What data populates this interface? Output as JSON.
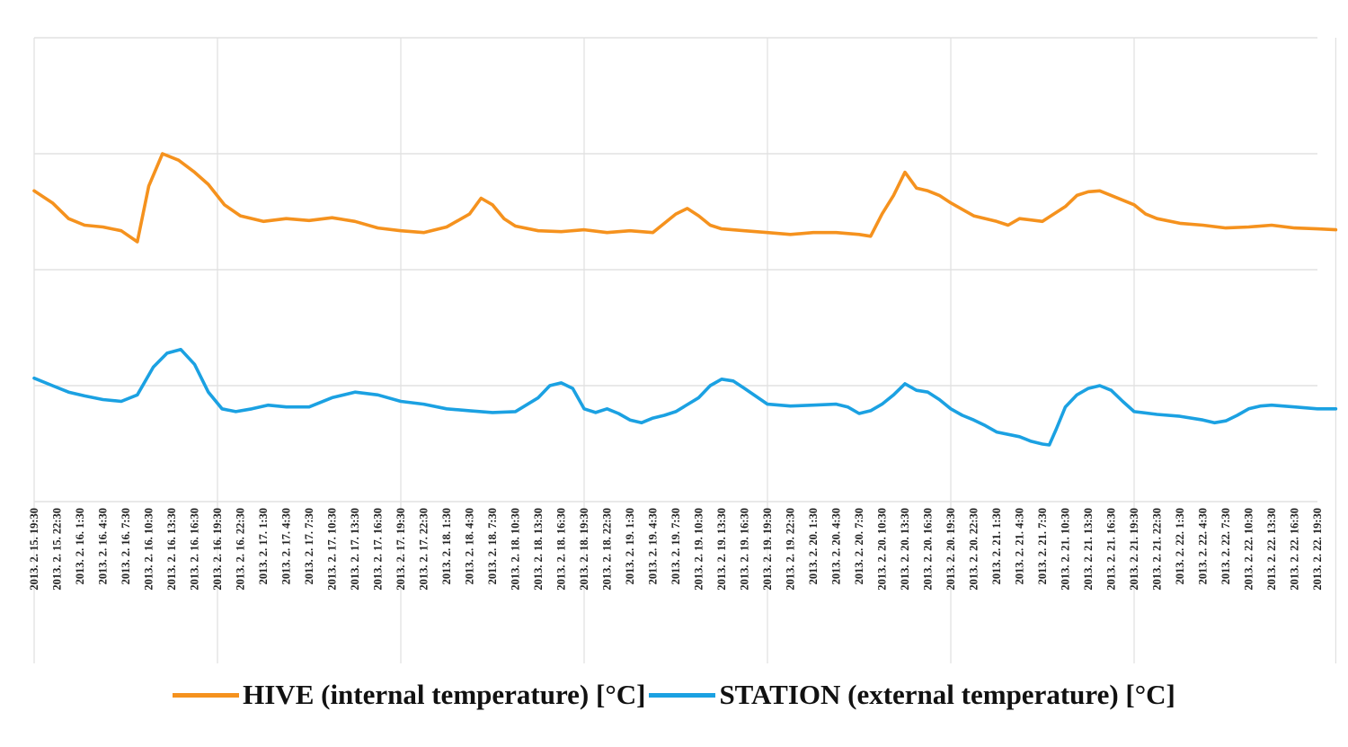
{
  "chart_data": {
    "type": "line",
    "title": "",
    "xlabel": "",
    "ylabel": "",
    "grid": true,
    "legend_position": "bottom",
    "y_tick_labels_shown": false,
    "categories": [
      "2013. 2. 15. 19:30",
      "2013. 2. 15. 22:30",
      "2013. 2. 16. 1:30",
      "2013. 2. 16. 4:30",
      "2013. 2. 16. 7:30",
      "2013. 2. 16. 10:30",
      "2013. 2. 16. 13:30",
      "2013. 2. 16. 16:30",
      "2013. 2. 16. 19:30",
      "2013. 2. 16. 22:30",
      "2013. 2. 17. 1:30",
      "2013. 2. 17. 4:30",
      "2013. 2. 17. 7:30",
      "2013. 2. 17. 10:30",
      "2013. 2. 17. 13:30",
      "2013. 2. 17. 16:30",
      "2013. 2. 17. 19:30",
      "2013. 2. 17. 22:30",
      "2013. 2. 18. 1:30",
      "2013. 2. 18. 4:30",
      "2013. 2. 18. 7:30",
      "2013. 2. 18. 10:30",
      "2013. 2. 18. 13:30",
      "2013. 2. 18. 16:30",
      "2013. 2. 18. 19:30",
      "2013. 2. 18. 22:30",
      "2013. 2. 19. 1:30",
      "2013. 2. 19. 4:30",
      "2013. 2. 19. 7:30",
      "2013. 2. 19. 10:30",
      "2013. 2. 19. 13:30",
      "2013. 2. 19. 16:30",
      "2013. 2. 19. 19:30",
      "2013. 2. 19. 22:30",
      "2013. 2. 20. 1:30",
      "2013. 2. 20. 4:30",
      "2013. 2. 20. 7:30",
      "2013. 2. 20. 10:30",
      "2013. 2. 20. 13:30",
      "2013. 2. 20. 16:30",
      "2013. 2. 20. 19:30",
      "2013. 2. 20. 22:30",
      "2013. 2. 21. 1:30",
      "2013. 2. 21. 4:30",
      "2013. 2. 21. 7:30",
      "2013. 2. 21. 10:30",
      "2013. 2. 21. 13:30",
      "2013. 2. 21. 16:30",
      "2013. 2. 21. 19:30",
      "2013. 2. 21. 22:30",
      "2013. 2. 22. 1:30",
      "2013. 2. 22. 4:30",
      "2013. 2. 22. 7:30",
      "2013. 2. 22. 10:30",
      "2013. 2. 22. 13:30",
      "2013. 2. 22. 16:30",
      "2013. 2. 22. 19:30"
    ],
    "y_range": [
      0,
      5
    ],
    "series": [
      {
        "name": "HIVE (internal temperature) [°C]",
        "color": "#F5921E",
        "values": [
          [
            0.0,
            3.35
          ],
          [
            0.8,
            3.22
          ],
          [
            1.5,
            3.05
          ],
          [
            2.2,
            2.98
          ],
          [
            3.0,
            2.96
          ],
          [
            3.8,
            2.92
          ],
          [
            4.5,
            2.8
          ],
          [
            5.0,
            3.4
          ],
          [
            5.6,
            3.75
          ],
          [
            6.3,
            3.68
          ],
          [
            7.0,
            3.55
          ],
          [
            7.6,
            3.42
          ],
          [
            8.3,
            3.2
          ],
          [
            9.0,
            3.08
          ],
          [
            10.0,
            3.02
          ],
          [
            11.0,
            3.05
          ],
          [
            12.0,
            3.03
          ],
          [
            13.0,
            3.06
          ],
          [
            14.0,
            3.02
          ],
          [
            15.0,
            2.95
          ],
          [
            16.0,
            2.92
          ],
          [
            17.0,
            2.9
          ],
          [
            18.0,
            2.96
          ],
          [
            19.0,
            3.1
          ],
          [
            19.5,
            3.27
          ],
          [
            20.0,
            3.2
          ],
          [
            20.5,
            3.05
          ],
          [
            21.0,
            2.97
          ],
          [
            22.0,
            2.92
          ],
          [
            23.0,
            2.91
          ],
          [
            24.0,
            2.93
          ],
          [
            25.0,
            2.9
          ],
          [
            26.0,
            2.92
          ],
          [
            27.0,
            2.9
          ],
          [
            28.0,
            3.1
          ],
          [
            28.5,
            3.16
          ],
          [
            29.0,
            3.08
          ],
          [
            29.5,
            2.98
          ],
          [
            30.0,
            2.94
          ],
          [
            31.0,
            2.92
          ],
          [
            32.0,
            2.9
          ],
          [
            33.0,
            2.88
          ],
          [
            34.0,
            2.9
          ],
          [
            35.0,
            2.9
          ],
          [
            36.0,
            2.88
          ],
          [
            36.5,
            2.86
          ],
          [
            37.0,
            3.1
          ],
          [
            37.5,
            3.3
          ],
          [
            38.0,
            3.55
          ],
          [
            38.5,
            3.38
          ],
          [
            39.0,
            3.35
          ],
          [
            39.5,
            3.3
          ],
          [
            40.0,
            3.22
          ],
          [
            40.5,
            3.15
          ],
          [
            41.0,
            3.08
          ],
          [
            42.0,
            3.02
          ],
          [
            42.5,
            2.98
          ],
          [
            43.0,
            3.05
          ],
          [
            44.0,
            3.02
          ],
          [
            45.0,
            3.18
          ],
          [
            45.5,
            3.3
          ],
          [
            46.0,
            3.34
          ],
          [
            46.5,
            3.35
          ],
          [
            47.0,
            3.3
          ],
          [
            48.0,
            3.2
          ],
          [
            48.5,
            3.1
          ],
          [
            49.0,
            3.05
          ],
          [
            50.0,
            3.0
          ],
          [
            51.0,
            2.98
          ],
          [
            52.0,
            2.95
          ],
          [
            53.0,
            2.96
          ],
          [
            54.0,
            2.98
          ],
          [
            55.0,
            2.95
          ],
          [
            56.0,
            2.94
          ],
          [
            56.8,
            2.93
          ]
        ]
      },
      {
        "name": "STATION (external temperature) [°C]",
        "color": "#1BA1E2",
        "values": [
          [
            0.0,
            1.33
          ],
          [
            0.8,
            1.25
          ],
          [
            1.5,
            1.18
          ],
          [
            2.2,
            1.14
          ],
          [
            3.0,
            1.1
          ],
          [
            3.8,
            1.08
          ],
          [
            4.5,
            1.15
          ],
          [
            5.2,
            1.45
          ],
          [
            5.8,
            1.6
          ],
          [
            6.4,
            1.64
          ],
          [
            7.0,
            1.48
          ],
          [
            7.6,
            1.18
          ],
          [
            8.2,
            1.0
          ],
          [
            8.8,
            0.97
          ],
          [
            9.5,
            1.0
          ],
          [
            10.2,
            1.04
          ],
          [
            11.0,
            1.02
          ],
          [
            12.0,
            1.02
          ],
          [
            13.0,
            1.12
          ],
          [
            14.0,
            1.18
          ],
          [
            15.0,
            1.15
          ],
          [
            16.0,
            1.08
          ],
          [
            17.0,
            1.05
          ],
          [
            18.0,
            1.0
          ],
          [
            19.0,
            0.98
          ],
          [
            20.0,
            0.96
          ],
          [
            21.0,
            0.97
          ],
          [
            22.0,
            1.12
          ],
          [
            22.5,
            1.25
          ],
          [
            23.0,
            1.28
          ],
          [
            23.5,
            1.22
          ],
          [
            24.0,
            1.0
          ],
          [
            24.5,
            0.96
          ],
          [
            25.0,
            1.0
          ],
          [
            25.5,
            0.95
          ],
          [
            26.0,
            0.88
          ],
          [
            26.5,
            0.85
          ],
          [
            27.0,
            0.9
          ],
          [
            27.5,
            0.93
          ],
          [
            28.0,
            0.97
          ],
          [
            29.0,
            1.12
          ],
          [
            29.5,
            1.25
          ],
          [
            30.0,
            1.32
          ],
          [
            30.5,
            1.3
          ],
          [
            31.0,
            1.22
          ],
          [
            32.0,
            1.05
          ],
          [
            33.0,
            1.03
          ],
          [
            34.0,
            1.04
          ],
          [
            35.0,
            1.05
          ],
          [
            35.5,
            1.02
          ],
          [
            36.0,
            0.95
          ],
          [
            36.5,
            0.98
          ],
          [
            37.0,
            1.05
          ],
          [
            37.5,
            1.15
          ],
          [
            38.0,
            1.27
          ],
          [
            38.5,
            1.2
          ],
          [
            39.0,
            1.18
          ],
          [
            39.5,
            1.1
          ],
          [
            40.0,
            1.0
          ],
          [
            40.5,
            0.93
          ],
          [
            41.0,
            0.88
          ],
          [
            41.5,
            0.82
          ],
          [
            42.0,
            0.75
          ],
          [
            43.0,
            0.7
          ],
          [
            43.5,
            0.65
          ],
          [
            44.0,
            0.62
          ],
          [
            44.3,
            0.61
          ],
          [
            44.6,
            0.78
          ],
          [
            45.0,
            1.02
          ],
          [
            45.5,
            1.15
          ],
          [
            46.0,
            1.22
          ],
          [
            46.5,
            1.25
          ],
          [
            47.0,
            1.2
          ],
          [
            47.5,
            1.08
          ],
          [
            48.0,
            0.97
          ],
          [
            49.0,
            0.94
          ],
          [
            50.0,
            0.92
          ],
          [
            51.0,
            0.88
          ],
          [
            51.5,
            0.85
          ],
          [
            52.0,
            0.87
          ],
          [
            52.5,
            0.93
          ],
          [
            53.0,
            1.0
          ],
          [
            53.5,
            1.03
          ],
          [
            54.0,
            1.04
          ],
          [
            55.0,
            1.02
          ],
          [
            56.0,
            1.0
          ],
          [
            56.8,
            1.0
          ]
        ]
      }
    ]
  }
}
